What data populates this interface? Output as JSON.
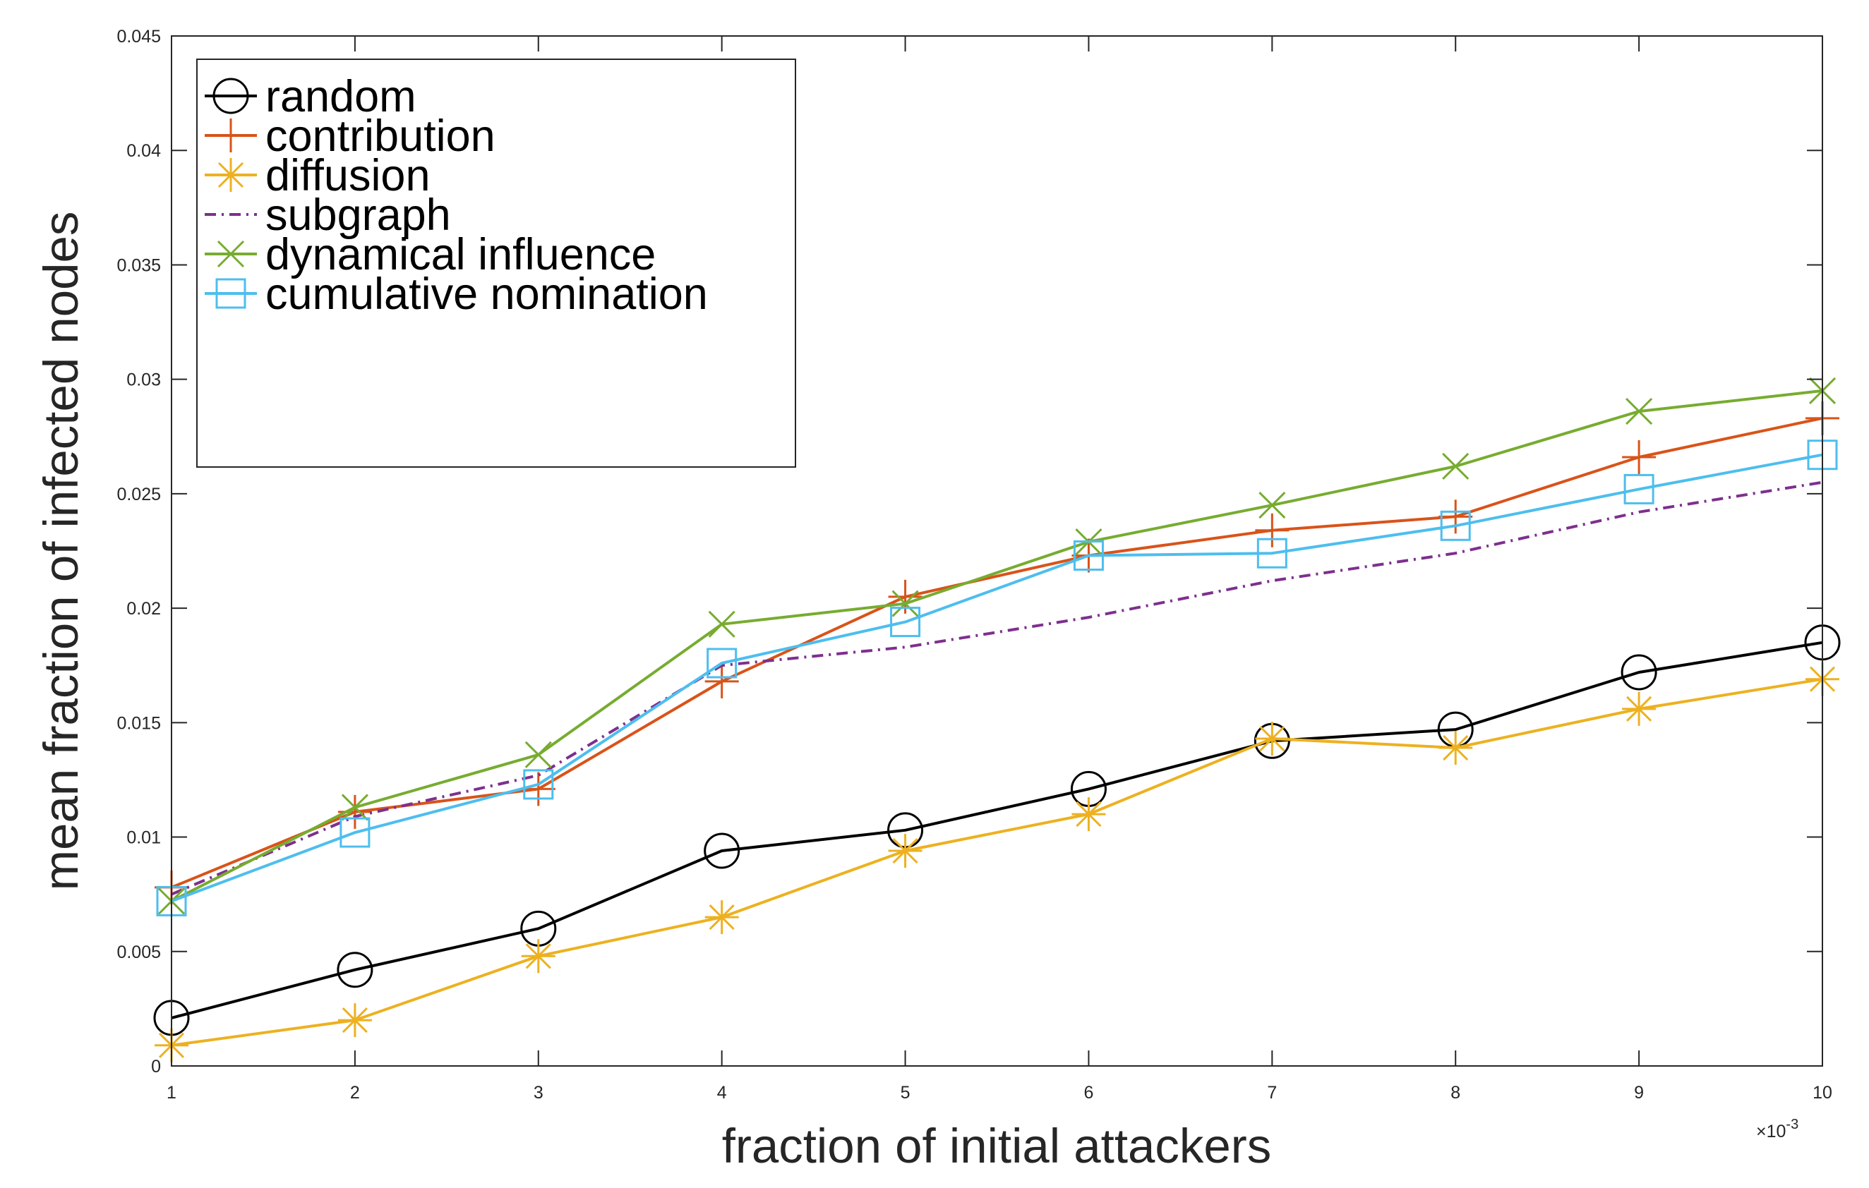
{
  "chart_data": {
    "type": "line",
    "title": "",
    "xlabel": "fraction of initial attackers",
    "ylabel": "mean fraction of infected nodes",
    "x": [
      1,
      2,
      3,
      4,
      5,
      6,
      7,
      8,
      9,
      10
    ],
    "x_tick_labels": [
      "1",
      "2",
      "3",
      "4",
      "5",
      "6",
      "7",
      "8",
      "9",
      "10"
    ],
    "x_exponent_label": "×10",
    "x_exponent_power": "-3",
    "xlim": [
      1,
      10
    ],
    "y_tick_labels": [
      "0",
      "0.005",
      "0.01",
      "0.015",
      "0.02",
      "0.025",
      "0.03",
      "0.035",
      "0.04",
      "0.045"
    ],
    "ylim": [
      0,
      0.045
    ],
    "grid": false,
    "legend_position": "top-left",
    "series": [
      {
        "name": "random",
        "color": "#000000",
        "marker": "circle",
        "dash": "solid",
        "values": [
          0.0021,
          0.0042,
          0.006,
          0.0094,
          0.0103,
          0.0121,
          0.0142,
          0.0147,
          0.0172,
          0.0185
        ]
      },
      {
        "name": "contribution",
        "color": "#D95319",
        "marker": "plus",
        "dash": "solid",
        "values": [
          0.0078,
          0.0111,
          0.0121,
          0.0168,
          0.0205,
          0.0223,
          0.0234,
          0.024,
          0.0266,
          0.0283
        ]
      },
      {
        "name": "diffusion",
        "color": "#EDB120",
        "marker": "asterisk",
        "dash": "solid",
        "values": [
          0.0009,
          0.002,
          0.0048,
          0.0065,
          0.0094,
          0.011,
          0.0143,
          0.0139,
          0.0156,
          0.0169
        ]
      },
      {
        "name": "subgraph",
        "color": "#7E2F8E",
        "marker": "none",
        "dash": "dashdot",
        "values": [
          0.0075,
          0.0109,
          0.0127,
          0.0175,
          0.0183,
          0.0196,
          0.0212,
          0.0224,
          0.0242,
          0.0255
        ]
      },
      {
        "name": "dynamical influence",
        "color": "#77AC30",
        "marker": "x",
        "dash": "solid",
        "values": [
          0.0072,
          0.0113,
          0.0136,
          0.0193,
          0.0202,
          0.0229,
          0.0245,
          0.0262,
          0.0286,
          0.0295
        ]
      },
      {
        "name": "cumulative nomination",
        "color": "#4DBEEE",
        "marker": "square",
        "dash": "solid",
        "values": [
          0.0072,
          0.0102,
          0.0123,
          0.0176,
          0.0194,
          0.0223,
          0.0224,
          0.0236,
          0.0252,
          0.0267
        ]
      }
    ]
  }
}
